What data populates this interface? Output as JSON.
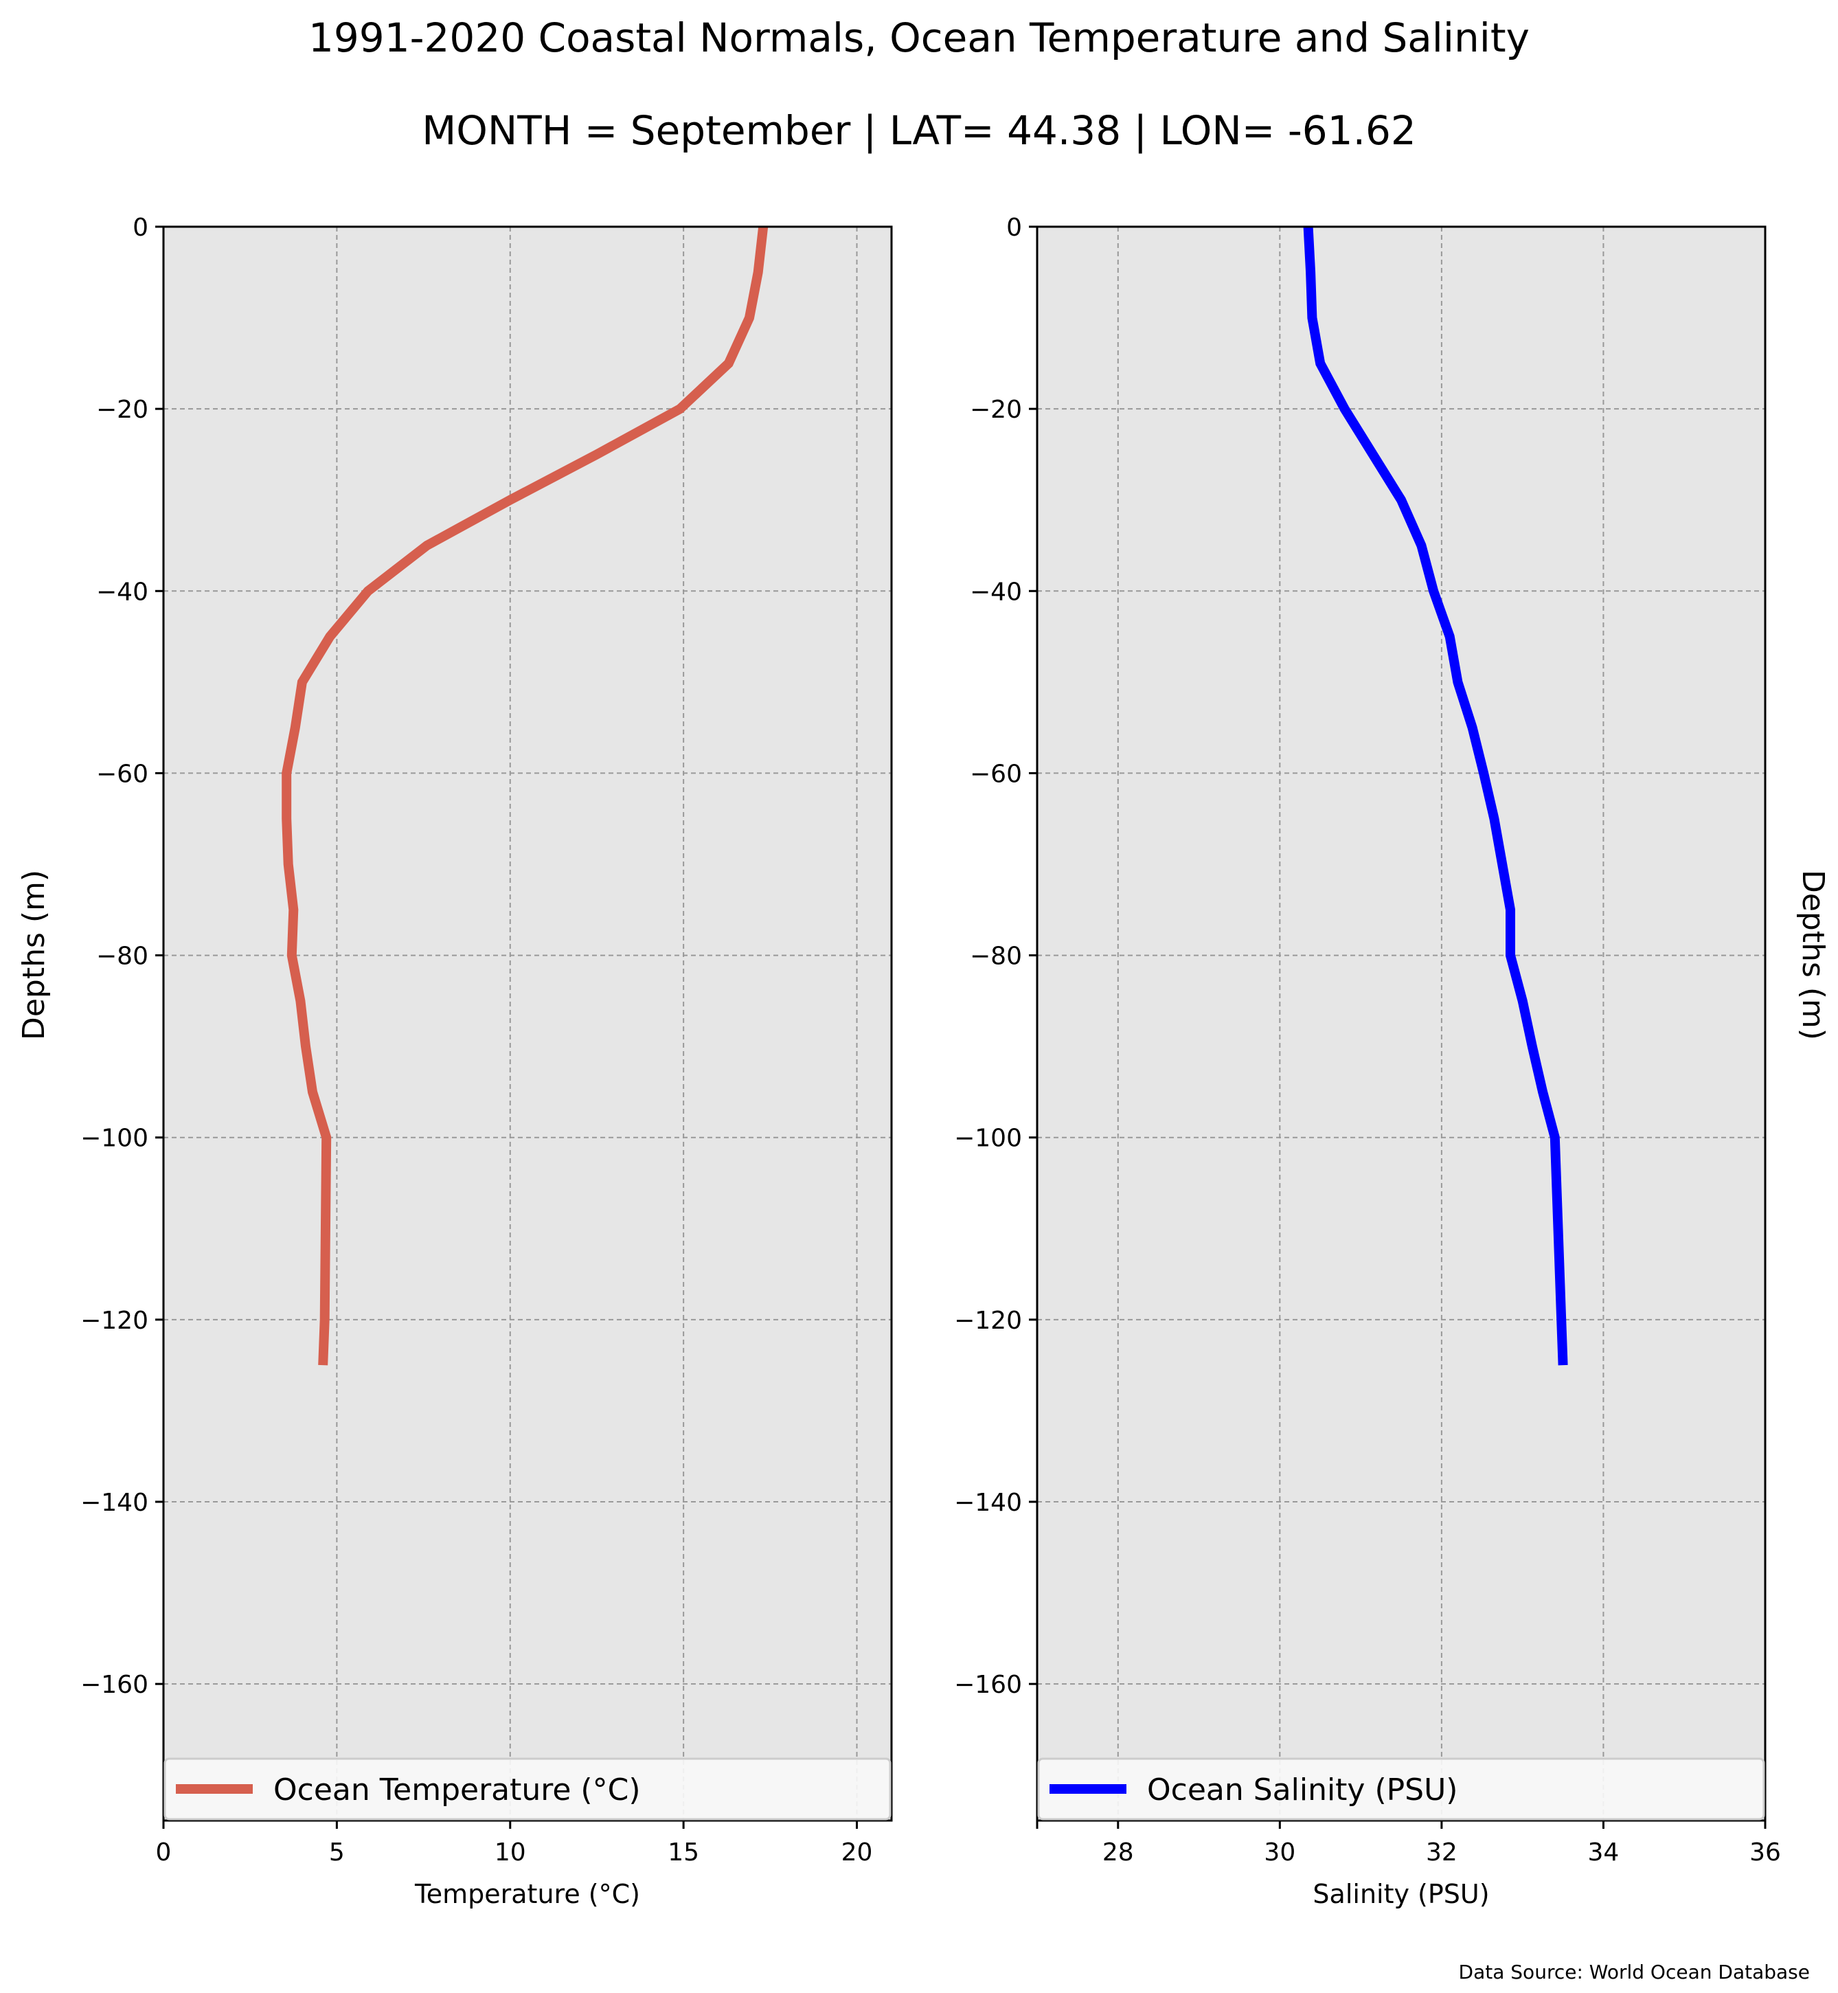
{
  "title": "1991-2020 Coastal Normals, Ocean Temperature and Salinity",
  "subtitle": "MONTH = September | LAT= 44.38 | LON= -61.62",
  "source_note": "Data Source: World Ocean Database",
  "colors": {
    "temperature": "#d65f4e",
    "salinity": "#0000ff",
    "plot_bg": "#e6e6e6",
    "grid": "#999999"
  },
  "chart_data": [
    {
      "type": "line",
      "title": "",
      "xlabel": "Temperature ($^\\circ$C)",
      "xlabel_display": "Temperature (°C)",
      "ylabel": "Depths (m)",
      "xlim": [
        0,
        21
      ],
      "ylim": [
        -175,
        0
      ],
      "xticks": [
        0,
        5,
        10,
        15,
        20
      ],
      "yticks": [
        0,
        -20,
        -40,
        -60,
        -80,
        -100,
        -120,
        -140,
        -160
      ],
      "ytick_labels": [
        "0",
        "−20",
        "−40",
        "−60",
        "−80",
        "−100",
        "−120",
        "−140",
        "−160"
      ],
      "grid": true,
      "legend": "lower-center",
      "series": [
        {
          "name": "Ocean Temperature (°C)",
          "color": "#d65f4e",
          "x": [
            17.3,
            17.15,
            16.9,
            16.3,
            14.9,
            12.5,
            10.0,
            7.6,
            5.9,
            4.8,
            4.0,
            3.8,
            3.55,
            3.55,
            3.6,
            3.75,
            3.7,
            3.95,
            4.1,
            4.3,
            4.7,
            4.65,
            4.6
          ],
          "y": [
            0,
            -5,
            -10,
            -15,
            -20,
            -25,
            -30,
            -35,
            -40,
            -45,
            -50,
            -55,
            -60,
            -65,
            -70,
            -75,
            -80,
            -85,
            -90,
            -95,
            -100,
            -120,
            -125
          ]
        }
      ]
    },
    {
      "type": "line",
      "title": "",
      "xlabel": "Salinity (PSU)",
      "ylabel": "Depths (m)",
      "xlim": [
        27,
        36
      ],
      "ylim": [
        -175,
        0
      ],
      "xticks": [
        28,
        30,
        32,
        34,
        36
      ],
      "yticks": [
        0,
        -20,
        -40,
        -60,
        -80,
        -100,
        -120,
        -140,
        -160
      ],
      "ytick_labels": [
        "0",
        "−20",
        "−40",
        "−60",
        "−80",
        "−100",
        "−120",
        "−140",
        "−160"
      ],
      "grid": true,
      "legend": "lower-center",
      "series": [
        {
          "name": "Ocean Salinity (PSU)",
          "color": "#0000ff",
          "x": [
            30.35,
            30.38,
            30.4,
            30.5,
            30.8,
            31.15,
            31.5,
            31.75,
            31.9,
            32.1,
            32.2,
            32.38,
            32.52,
            32.65,
            32.75,
            32.85,
            32.85,
            33.0,
            33.12,
            33.25,
            33.4,
            33.48,
            33.5
          ],
          "y": [
            0,
            -5,
            -10,
            -15,
            -20,
            -25,
            -30,
            -35,
            -40,
            -45,
            -50,
            -55,
            -60,
            -65,
            -70,
            -75,
            -80,
            -85,
            -90,
            -95,
            -100,
            -120,
            -125
          ]
        }
      ]
    }
  ]
}
